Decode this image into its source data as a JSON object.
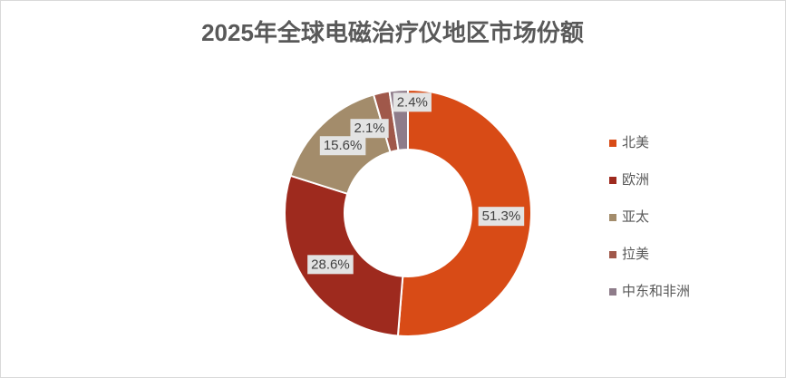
{
  "chart_data": {
    "type": "donut",
    "title": "2025年全球电磁治疗仪地区市场份额",
    "categories": [
      "北美",
      "欧洲",
      "亚太",
      "拉美",
      "中东和非洲"
    ],
    "values": [
      51.3,
      28.6,
      15.6,
      2.1,
      2.4
    ],
    "value_labels": [
      "51.3%",
      "28.6%",
      "15.6%",
      "2.1%",
      "2.4%"
    ],
    "colors": [
      "#D84B16",
      "#9E2A1E",
      "#A38C6B",
      "#A0584A",
      "#8E7C8A"
    ],
    "legend": "right"
  }
}
